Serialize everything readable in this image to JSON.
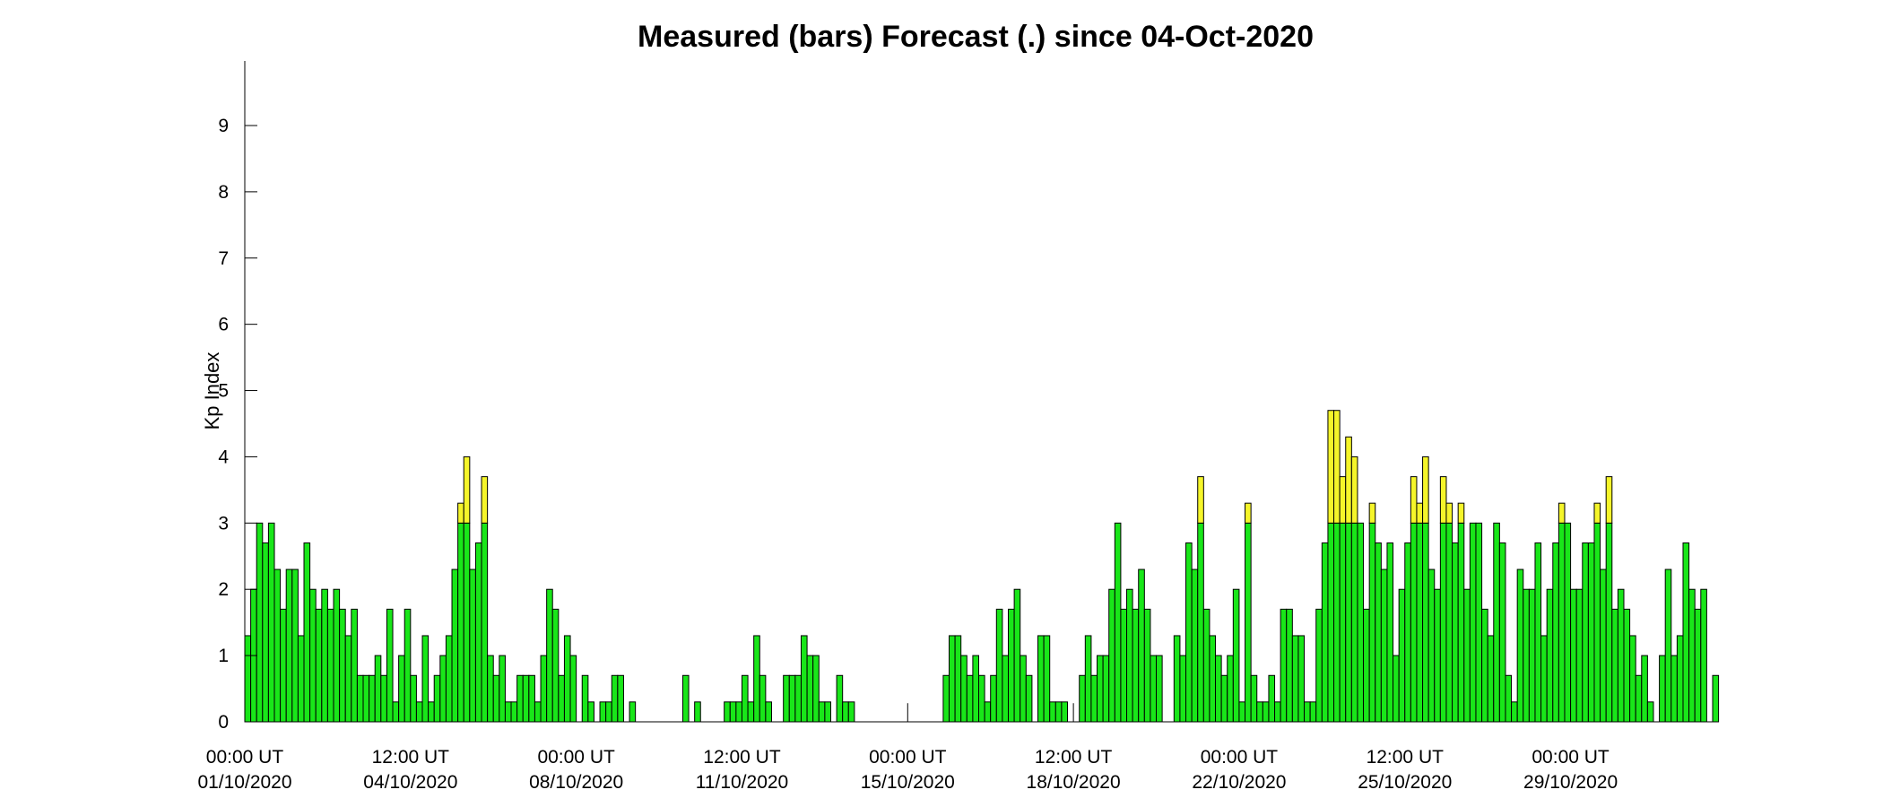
{
  "colors": {
    "measured": "#19e619",
    "forecast": "#f5f52a",
    "axis": "#000000",
    "background": "#ffffff"
  },
  "chart_data": {
    "type": "bar",
    "title": "Measured (bars) Forecast (.) since 04-Oct-2020",
    "ylabel": "Kp Index",
    "xlabel": "",
    "ylim": [
      0,
      10
    ],
    "yticks": [
      0,
      1,
      2,
      3,
      4,
      5,
      6,
      7,
      8,
      9
    ],
    "grid": false,
    "x_start": "2020-10-01T00:00Z",
    "interval_hours": 3,
    "x_range_bins": [
      0,
      248
    ],
    "x_ticks": [
      {
        "line1": "00:00 UT",
        "line2": "01/10/2020",
        "bin": 0
      },
      {
        "line1": "12:00 UT",
        "line2": "04/10/2020",
        "bin": 28
      },
      {
        "line1": "00:00 UT",
        "line2": "08/10/2020",
        "bin": 56
      },
      {
        "line1": "12:00 UT",
        "line2": "11/10/2020",
        "bin": 84
      },
      {
        "line1": "00:00 UT",
        "line2": "15/10/2020",
        "bin": 112
      },
      {
        "line1": "12:00 UT",
        "line2": "18/10/2020",
        "bin": 140
      },
      {
        "line1": "00:00 UT",
        "line2": "22/10/2020",
        "bin": 168
      },
      {
        "line1": "12:00 UT",
        "line2": "25/10/2020",
        "bin": 196
      },
      {
        "line1": "00:00 UT",
        "line2": "29/10/2020",
        "bin": 224
      }
    ],
    "values": [
      1.3,
      2.0,
      3.0,
      2.7,
      3.0,
      2.3,
      1.7,
      2.3,
      2.3,
      1.3,
      2.7,
      2.0,
      1.7,
      2.0,
      1.7,
      2.0,
      1.7,
      1.3,
      1.7,
      0.7,
      0.7,
      0.7,
      1.0,
      0.7,
      1.7,
      0.3,
      1.0,
      1.7,
      0.7,
      0.3,
      1.3,
      0.3,
      0.7,
      1.0,
      1.3,
      2.3,
      3.3,
      4.0,
      2.3,
      2.7,
      3.7,
      1.0,
      0.7,
      1.0,
      0.3,
      0.3,
      0.7,
      0.7,
      0.7,
      0.3,
      1.0,
      2.0,
      1.7,
      0.7,
      1.3,
      1.0,
      0,
      0.7,
      0.3,
      0,
      0.3,
      0.3,
      0.7,
      0.7,
      0,
      0.3,
      0,
      0,
      0,
      0,
      0,
      0,
      0,
      0,
      0.7,
      0,
      0.3,
      0,
      0,
      0,
      0,
      0.3,
      0.3,
      0.3,
      0.7,
      0.3,
      1.3,
      0.7,
      0.3,
      0,
      0,
      0.7,
      0.7,
      0.7,
      1.3,
      1.0,
      1.0,
      0.3,
      0.3,
      0,
      0.7,
      0.3,
      0.3,
      0,
      0,
      0,
      0,
      0,
      0,
      0,
      0,
      0,
      0,
      0,
      0,
      0,
      0,
      0,
      0.7,
      1.3,
      1.3,
      1.0,
      0.7,
      1.0,
      0.7,
      0.3,
      0.7,
      1.7,
      1.0,
      1.7,
      2.0,
      1.0,
      0.7,
      0,
      1.3,
      1.3,
      0.3,
      0.3,
      0.3,
      0,
      0,
      0.7,
      1.3,
      0.7,
      1.0,
      1.0,
      2.0,
      3.0,
      1.7,
      2.0,
      1.7,
      2.3,
      1.7,
      1.0,
      1.0,
      0,
      0,
      1.3,
      1.0,
      2.7,
      2.3,
      3.7,
      1.7,
      1.3,
      1.0,
      0.7,
      1.0,
      2.0,
      0.3,
      3.3,
      0.7,
      0.3,
      0.3,
      0.7,
      0.3,
      1.7,
      1.7,
      1.3,
      1.3,
      0.3,
      0.3,
      1.7,
      2.7,
      4.7,
      4.7,
      3.7,
      4.3,
      4.0,
      3.0,
      1.7,
      3.3,
      2.7,
      2.3,
      2.7,
      1.0,
      2.0,
      2.7,
      3.7,
      3.3,
      4.0,
      2.3,
      2.0,
      3.7,
      3.3,
      2.7,
      3.3,
      2.0,
      3.0,
      3.0,
      1.7,
      1.3,
      3.0,
      2.7,
      0.7,
      0.3,
      2.3,
      2.0,
      2.0,
      2.7,
      1.3,
      2.0,
      2.7,
      3.3,
      3.0,
      2.0,
      2.0,
      2.7,
      2.7,
      3.3,
      2.3,
      3.7,
      1.7,
      2.0,
      1.7,
      1.3,
      0.7,
      1.0,
      0.3,
      0,
      1.0,
      2.3,
      1.0,
      1.3,
      2.7,
      2.0,
      1.7,
      2.0,
      0,
      0.7
    ],
    "forecast_threshold": 3.0,
    "forecast_markers": [
      {
        "bin": 112,
        "value": 0.2
      },
      {
        "bin": 140,
        "value": 0.2
      }
    ]
  }
}
